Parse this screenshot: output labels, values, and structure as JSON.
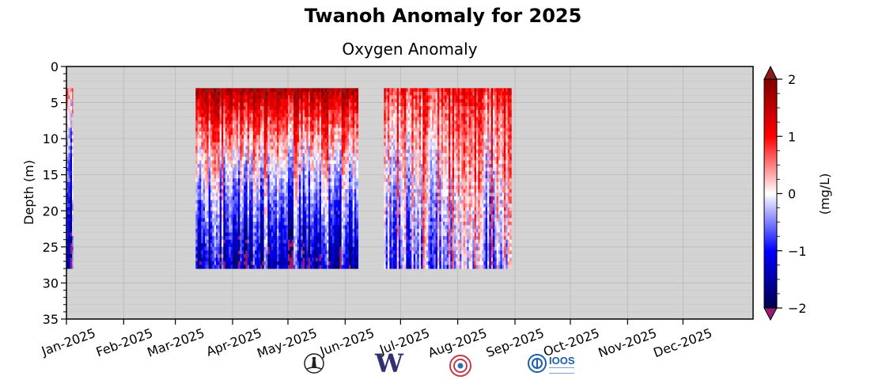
{
  "title": "Twanoh Anomaly for 2025",
  "chart_data": {
    "type": "heatmap",
    "subtitle": "Oxygen Anomaly",
    "ylabel": "Depth (m)",
    "xlabel": "",
    "ylim": [
      35,
      0
    ],
    "yticks": [
      "0",
      "5",
      "10",
      "15",
      "20",
      "25",
      "30",
      "35"
    ],
    "y_tick_values": [
      0,
      5,
      10,
      15,
      20,
      25,
      30,
      35
    ],
    "xticks": [
      "Jan-2025",
      "Feb-2025",
      "Mar-2025",
      "Apr-2025",
      "May-2025",
      "Jun-2025",
      "Jul-2025",
      "Aug-2025",
      "Sep-2025",
      "Oct-2025",
      "Nov-2025",
      "Dec-2025"
    ],
    "x_tick_days": [
      0,
      31,
      59,
      90,
      120,
      151,
      181,
      212,
      243,
      273,
      304,
      334
    ],
    "x_range_days": [
      0,
      372
    ],
    "grid": true,
    "data_depth_range": [
      3,
      28
    ],
    "segments": [
      {
        "start": "2025-01-01",
        "end": "2025-01-04",
        "start_day": 0,
        "end_day": 3.5,
        "surface_mean": 0.6,
        "bottom_mean": -1.5
      },
      {
        "start": "2025-03-12",
        "end": "2025-06-08",
        "start_day": 70,
        "end_day": 158,
        "surface_mean": 1.8,
        "bottom_mean": -1.4
      },
      {
        "start": "2025-06-22",
        "end": "2025-08-29",
        "start_day": 172,
        "end_day": 241,
        "surface_mean": 1.0,
        "bottom_mean": -0.4
      }
    ],
    "colorbar": {
      "label": "(mg/L)",
      "ticks": [
        "2",
        "1",
        "0",
        "−1",
        "−2"
      ],
      "tick_values": [
        2,
        1,
        0,
        -1,
        -2
      ],
      "range": [
        -2,
        2
      ],
      "colormap": "seismic",
      "over_color": "#8b1a1a",
      "under_color": "#9b1b6e"
    },
    "background_color": "#d3d3d3"
  },
  "logos": [
    {
      "name": "lighthouse-logo"
    },
    {
      "name": "uw-logo",
      "text": "W"
    },
    {
      "name": "tribal-logo"
    },
    {
      "name": "ioos-logo",
      "text": "IOOS"
    }
  ]
}
